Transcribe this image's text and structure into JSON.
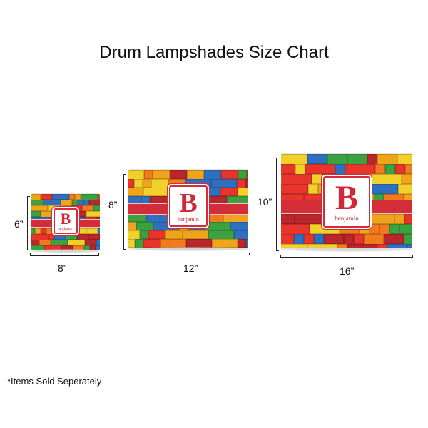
{
  "title": "Drum Lampshades Size Chart",
  "footnote": "*Items Sold Seperately",
  "monogram": {
    "letter": "B",
    "name": "benjamin"
  },
  "colors": {
    "band": "#d42d3a",
    "bricks": [
      "#e8352c",
      "#f0a41c",
      "#2f6fc0",
      "#3aa23e",
      "#f07a1c",
      "#f2d02a",
      "#b9272d"
    ]
  },
  "shades": [
    {
      "height_label": "6”",
      "width_label": "8”"
    },
    {
      "height_label": "8”",
      "width_label": "12”"
    },
    {
      "height_label": "10”",
      "width_label": "16”"
    }
  ]
}
